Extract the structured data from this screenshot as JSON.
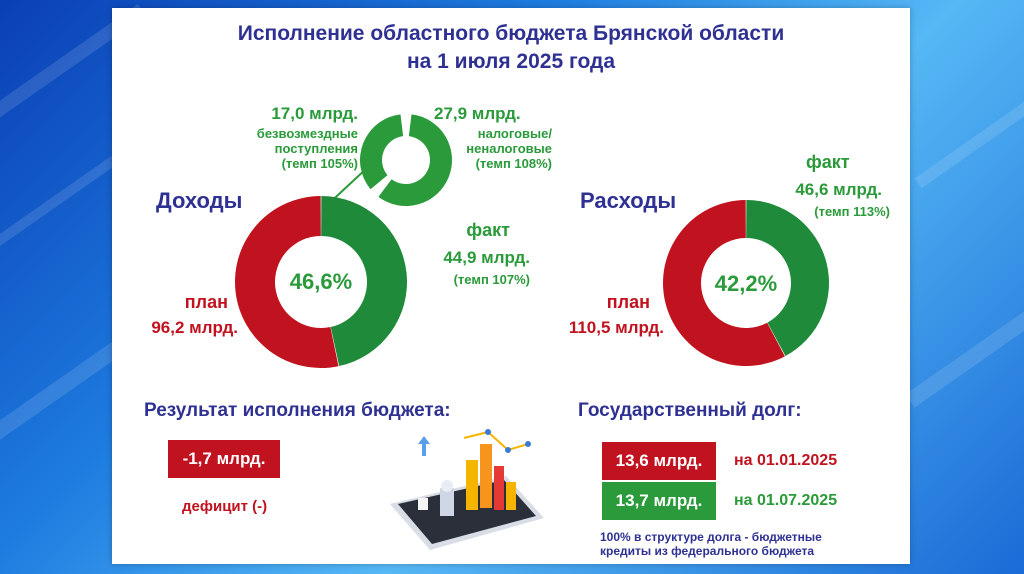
{
  "title_line1": "Исполнение областного бюджета Брянской области",
  "title_line2": "на 1 июля 2025 года",
  "colors": {
    "green": "#2a9a3a",
    "dark_green": "#1f8a3a",
    "red": "#c1121f",
    "navy": "#2e3192"
  },
  "income": {
    "heading": "Доходы",
    "center": "46,6%",
    "fact_label": "факт",
    "fact_value": "44,9 млрд.",
    "fact_tempo": "(темп 107%)",
    "plan_label": "план",
    "plan_value": "96,2 млрд.",
    "breakdown": {
      "left_value": "17,0 млрд.",
      "left_line1": "безвозмездные",
      "left_line2": "поступления",
      "left_tempo": "(темп 105%)",
      "right_value": "27,9 млрд.",
      "right_line1": "налоговые/",
      "right_line2": "неналоговые",
      "right_tempo": "(темп 108%)"
    }
  },
  "expense": {
    "heading": "Расходы",
    "center": "42,2%",
    "fact_label": "факт",
    "fact_value": "46,6 млрд.",
    "fact_tempo": "(темп 113%)",
    "plan_label": "план",
    "plan_value": "110,5 млрд."
  },
  "result": {
    "heading": "Результат исполнения бюджета:",
    "value": "-1,7 млрд.",
    "note": "дефицит (-)"
  },
  "debt": {
    "heading": "Государственный долг:",
    "rows": [
      {
        "value": "13,6 млрд.",
        "date": "на 01.01.2025"
      },
      {
        "value": "13,7 млрд.",
        "date": "на 01.07.2025"
      }
    ],
    "note_line1": "100% в структуре долга - бюджетные",
    "note_line2": "кредиты из федерального бюджета"
  },
  "chart_data": [
    {
      "type": "pie",
      "donut": true,
      "name": "Доходы",
      "categories": [
        "факт",
        "остаток плана"
      ],
      "values": [
        44.9,
        51.3
      ],
      "plan_total": 96.2,
      "fact_share_percent": 46.6
    },
    {
      "type": "pie",
      "donut": true,
      "name": "Доходы: структура факта",
      "categories": [
        "налоговые/неналоговые",
        "безвозмездные поступления"
      ],
      "values": [
        27.9,
        17.0
      ]
    },
    {
      "type": "pie",
      "donut": true,
      "name": "Расходы",
      "categories": [
        "факт",
        "остаток плана"
      ],
      "values": [
        46.6,
        63.9
      ],
      "plan_total": 110.5,
      "fact_share_percent": 42.2
    }
  ]
}
